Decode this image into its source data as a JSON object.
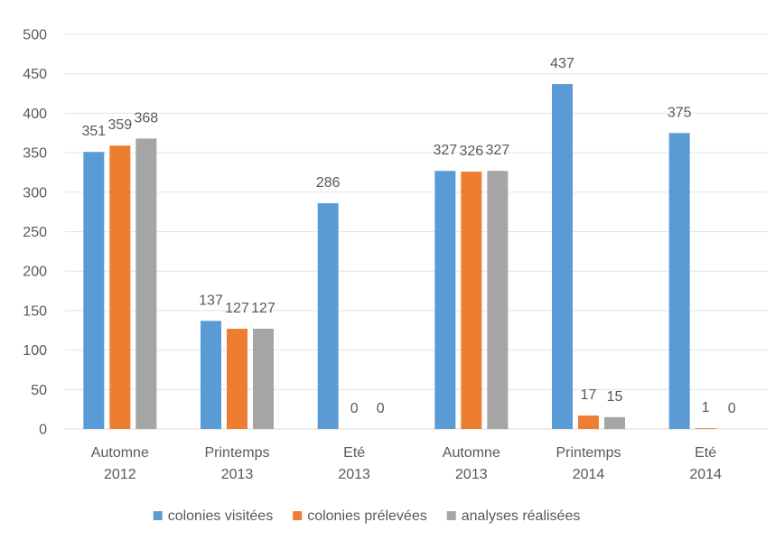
{
  "chart_data": {
    "type": "bar",
    "categories": [
      [
        "Automne",
        "2012"
      ],
      [
        "Printemps",
        "2013"
      ],
      [
        "Eté",
        "2013"
      ],
      [
        "Automne",
        "2013"
      ],
      [
        "Printemps",
        "2014"
      ],
      [
        "Eté",
        "2014"
      ]
    ],
    "series": [
      {
        "name": "colonies visitées",
        "color": "#5b9bd5",
        "values": [
          351,
          137,
          286,
          327,
          437,
          375
        ],
        "labels": [
          "351",
          "137",
          "286",
          "327",
          "437",
          "375"
        ]
      },
      {
        "name": "colonies prélevées",
        "color": "#ed7d31",
        "values": [
          359,
          127,
          0,
          326,
          17,
          1
        ],
        "labels": [
          "359",
          "127",
          "0",
          "326",
          "17",
          "1"
        ]
      },
      {
        "name": "analyses réalisées",
        "color": "#a5a5a5",
        "values": [
          368,
          127,
          0,
          327,
          15,
          0
        ],
        "labels": [
          "368",
          "127",
          "0",
          "327",
          "15",
          "0"
        ]
      }
    ],
    "yticks": [
      "0",
      "50",
      "100",
      "150",
      "200",
      "250",
      "300",
      "350",
      "400",
      "450",
      "500"
    ],
    "ylim": [
      0,
      500
    ],
    "title": "",
    "xlabel": "",
    "ylabel": "",
    "grid": true,
    "legend_position": "bottom"
  }
}
